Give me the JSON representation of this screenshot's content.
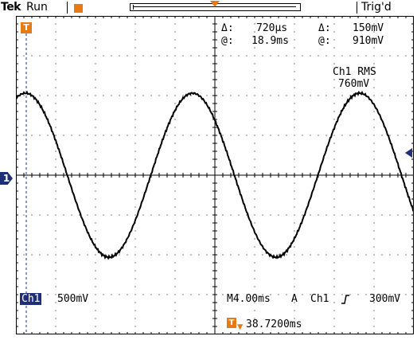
{
  "status_bar": {
    "brand": "Tek",
    "run_state": "Run",
    "trigger_state": "Trig'd"
  },
  "cursors": {
    "delta_symbol": "Δ:",
    "at_symbol": "@:",
    "time_delta": "720µs",
    "time_at": "18.9ms",
    "volt_delta": "150mV",
    "volt_at": "910mV"
  },
  "measurement": {
    "label": "Ch1 RMS",
    "value": "760mV"
  },
  "channel": {
    "name": "Ch1",
    "scale": "500mV",
    "ground_marker": "1"
  },
  "timebase": {
    "horizontal": "M4.00ms",
    "trigger_mode": "A",
    "trigger_source": "Ch1",
    "trigger_slope_icon": "rising-edge-icon",
    "trigger_level": "300mV",
    "trigger_marker": "T",
    "trigger_position": "38.7200ms"
  },
  "colors": {
    "accent_orange": "#e87a14",
    "channel_blue": "#1f2f7a",
    "trace": "#000000",
    "grid": "#000000"
  }
}
